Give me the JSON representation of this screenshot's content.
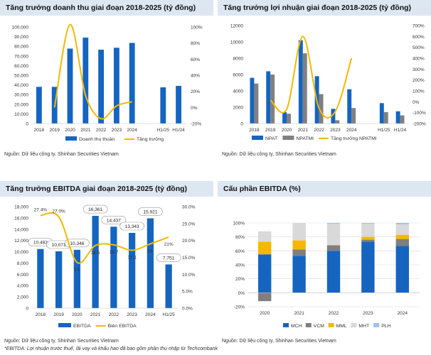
{
  "charts": [
    {
      "title": "Tăng trưởng doanh thu giai đoạn 2018-2025 (tỷ đồng)",
      "source": "Nguồn: Dữ liệu công ty, Shinhan Securities Vietnam"
    },
    {
      "title": "Tăng trưởng lợi nhuận giai đoạn 2018-2025 (tỷ đồng)",
      "source": "Nguồn: Dữ liệu công ty, Shinhan Securities Vietnam"
    },
    {
      "title": "Tăng trưởng EBITDA giai đoạn 2018-2025 (tỷ đồng)",
      "source": "Nguồn: Dữ liệu công ty, Shinhan Securities Vietnam",
      "note": "*EBITDA: Lợi nhuận trước thuế, lãi vay và khấu hao đã bao gồm phần thu nhập từ Techcombank"
    },
    {
      "title": "Cấu phần EBITDA (%)",
      "source": "Nguồn: Dữ liệu công ty, Shinhan Securities Vietnam"
    }
  ],
  "chart_data": [
    {
      "type": "bar",
      "title": "Tăng trưởng doanh thu giai đoạn 2018-2025 (tỷ đồng)",
      "categories": [
        "2018",
        "2019",
        "2020",
        "2021",
        "2022",
        "2023",
        "2024",
        "",
        "H1/25",
        "H1/24"
      ],
      "ylim": [
        0,
        100000
      ],
      "yticks": [
        "0",
        "10,000",
        "20,000",
        "30,000",
        "40,000",
        "50,000",
        "60,000",
        "70,000",
        "80,000",
        "90,000",
        "100,000"
      ],
      "y2lim": [
        -20,
        100
      ],
      "y2ticks": [
        "-20%",
        "0%",
        "20%",
        "40%",
        "60%",
        "80%",
        "100%"
      ],
      "series": [
        {
          "name": "Doanh thu thuần",
          "type": "bar",
          "color": "#1565c0",
          "values": [
            38000,
            38000,
            77600,
            89000,
            76500,
            78500,
            83500,
            null,
            37500,
            39000
          ]
        },
        {
          "name": "Tăng trưởng",
          "type": "line",
          "color": "#f5b800",
          "values": [
            null,
            0,
            103,
            15,
            -14,
            2,
            7,
            null,
            null,
            null
          ]
        }
      ]
    },
    {
      "type": "bar",
      "title": "Tăng trưởng lợi nhuận giai đoạn 2018-2025 (tỷ đồng)",
      "categories": [
        "2018",
        "2019",
        "2020",
        "2021",
        "2022",
        "2023",
        "2024",
        "",
        "H1/25",
        "H1/24"
      ],
      "ylim": [
        0,
        12000
      ],
      "yticks": [
        "0",
        "2000",
        "4000",
        "6000",
        "8000",
        "10000",
        "12000"
      ],
      "y2lim": [
        -200,
        700
      ],
      "y2ticks": [
        "-200%",
        "-100%",
        "0%",
        "100%",
        "200%",
        "300%",
        "400%",
        "500%",
        "600%",
        "700%"
      ],
      "series": [
        {
          "name": "NPAT",
          "type": "bar",
          "color": "#1565c0",
          "values": [
            5600,
            6400,
            1400,
            10200,
            5800,
            1800,
            4200,
            null,
            2500,
            1500
          ]
        },
        {
          "name": "NPATMI",
          "type": "bar",
          "color": "#808080",
          "values": [
            4900,
            6000,
            1200,
            8600,
            3600,
            400,
            1900,
            null,
            1400,
            1000
          ]
        },
        {
          "name": "Tăng trưởng NPATMI",
          "type": "line",
          "color": "#f5b800",
          "values": [
            null,
            15,
            -70,
            600,
            -60,
            -90,
            400,
            null,
            null,
            null
          ]
        }
      ]
    },
    {
      "type": "bar",
      "title": "Tăng trưởng EBITDA giai đoạn 2018-2025 (tỷ đồng)",
      "categories": [
        "2018",
        "2019",
        "2020",
        "2021",
        "2022",
        "2023",
        "2024",
        "H1/25"
      ],
      "ylim": [
        0,
        18000
      ],
      "yticks": [
        "0",
        "2,000",
        "4,000",
        "6,000",
        "8,000",
        "10,000",
        "12,000",
        "14,000",
        "16,000",
        "18,000"
      ],
      "y2lim": [
        0,
        30
      ],
      "y2ticks": [
        "0.0%",
        "5.0%",
        "10.0%",
        "15.0%",
        "20.0%",
        "25.0%",
        "30.0%"
      ],
      "series": [
        {
          "name": "EBITDA",
          "type": "bar",
          "color": "#1565c0",
          "values": [
            10482,
            10071,
            10346,
            16361,
            14437,
            13343,
            15921,
            7751
          ],
          "labels": [
            "10,482",
            "10,071",
            "10,346",
            "16,361",
            "14,437",
            "13,343",
            "15,921",
            "7,751"
          ]
        },
        {
          "name": "Biên EBITDA",
          "type": "line",
          "color": "#f5b800",
          "values": [
            27.4,
            27.0,
            13.5,
            18.5,
            18.7,
            17.1,
            19.0,
            21.0
          ],
          "labels": [
            "27.4%",
            "27.0%",
            "13.",
            "18.5",
            "18.7",
            "17.1",
            "19.",
            "21%"
          ]
        }
      ]
    },
    {
      "type": "bar",
      "title": "Cấu phần EBITDA (%)",
      "categories": [
        "2020",
        "2021",
        "2022",
        "2023",
        "2024"
      ],
      "ylim": [
        -20,
        100
      ],
      "yticks": [
        "-20%",
        "0%",
        "20%",
        "40%",
        "60%",
        "80%",
        "100%"
      ],
      "series": [
        {
          "name": "MCH",
          "color": "#1565c0",
          "values": [
            55,
            53,
            60,
            73,
            67
          ]
        },
        {
          "name": "VCM",
          "color": "#7f7f7f",
          "values": [
            -12,
            9,
            8,
            3,
            10
          ]
        },
        {
          "name": "MML",
          "color": "#f5b800",
          "values": [
            18,
            13,
            0,
            4,
            6
          ]
        },
        {
          "name": "MHT",
          "color": "#d9d9d9",
          "values": [
            15,
            25,
            31,
            19,
            15
          ]
        },
        {
          "name": "PLH",
          "color": "#9dc3e6",
          "values": [
            0,
            0,
            1,
            1,
            2
          ]
        }
      ]
    }
  ]
}
